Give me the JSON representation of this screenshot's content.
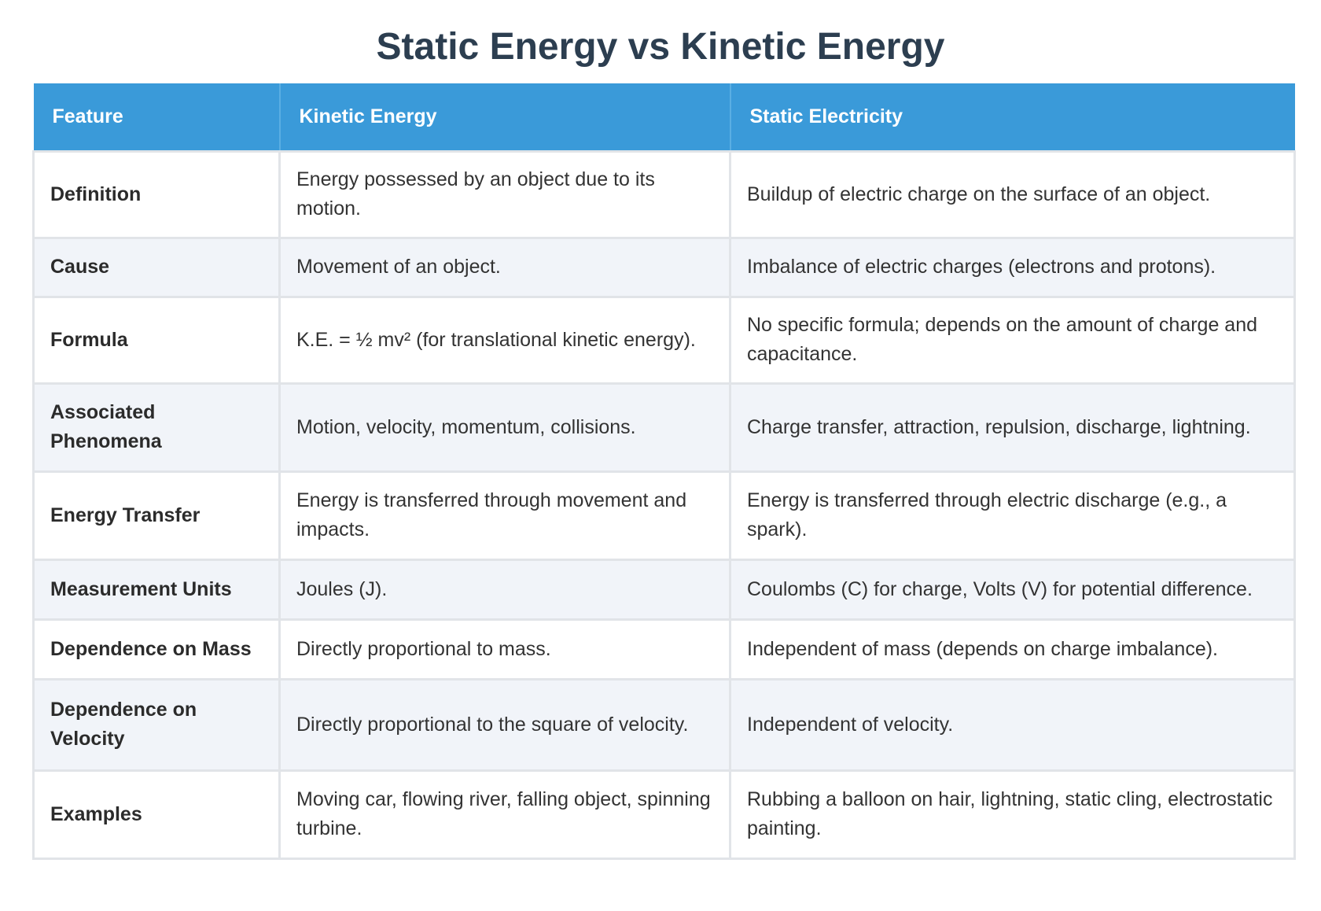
{
  "title": "Static Energy vs Kinetic Energy",
  "headers": [
    "Feature",
    "Kinetic Energy",
    "Static Electricity"
  ],
  "rows": [
    {
      "feature": "Definition",
      "kinetic": "Energy possessed by an object due to its motion.",
      "static": "Buildup of electric charge on the surface of an object."
    },
    {
      "feature": "Cause",
      "kinetic": "Movement of an object.",
      "static": "Imbalance of electric charges (electrons and protons)."
    },
    {
      "feature": "Formula",
      "kinetic": "K.E. = ½ mv² (for translational kinetic energy).",
      "static": "No specific formula; depends on the amount of charge and capacitance."
    },
    {
      "feature": "Associated Phenomena",
      "kinetic": "Motion, velocity, momentum, collisions.",
      "static": "Charge transfer, attraction, repulsion, discharge, lightning."
    },
    {
      "feature": "Energy Transfer",
      "kinetic": "Energy is transferred through movement and impacts.",
      "static": "Energy is transferred through electric discharge (e.g., a spark)."
    },
    {
      "feature": "Measurement Units",
      "kinetic": "Joules (J).",
      "static": "Coulombs (C) for charge, Volts (V) for potential difference."
    },
    {
      "feature": "Dependence on Mass",
      "kinetic": "Directly proportional to mass.",
      "static": "Independent of mass (depends on charge imbalance)."
    },
    {
      "feature": "Dependence on Velocity",
      "kinetic": "Directly proportional to the square of velocity.",
      "static": "Independent of velocity."
    },
    {
      "feature": "Examples",
      "kinetic": "Moving car, flowing river, falling object, spinning turbine.",
      "static": "Rubbing a balloon on hair, lightning, static cling, electrostatic painting."
    }
  ],
  "colors": {
    "header_bg": "#3a9ad9",
    "title_text": "#2c3e50",
    "row_alt_bg": "#f1f4f9"
  }
}
